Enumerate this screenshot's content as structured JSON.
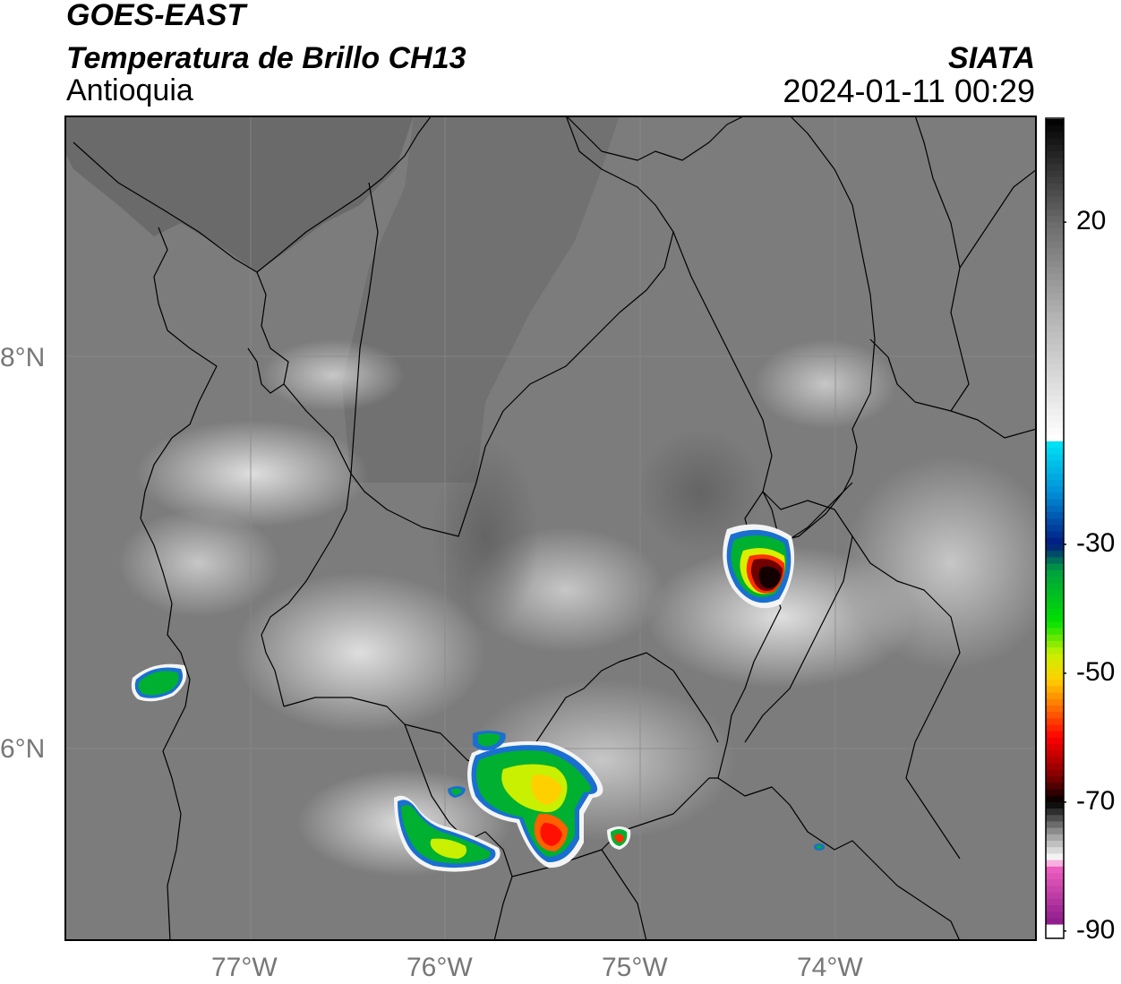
{
  "header": {
    "satellite": "GOES-EAST",
    "product": "Temperatura de Brillo CH13",
    "region": "Antioquia",
    "agency": "SIATA",
    "datetime": "2024-01-11 00:29"
  },
  "map": {
    "lat_labels": [
      "8°N",
      "6°N"
    ],
    "lon_labels": [
      "77°W",
      "76°W",
      "75°W",
      "74°W"
    ],
    "extent": {
      "lon": [
        -77.95,
        -72.95
      ],
      "lat": [
        5.1,
        9.3
      ]
    },
    "colors": {
      "frame": "#000000",
      "grid": "#8a8a8a",
      "border": "#000000"
    }
  },
  "colorbar": {
    "ticks": [
      "20",
      "-30",
      "-50",
      "-70",
      "-90"
    ],
    "tick_values": [
      20,
      -30,
      -50,
      -70,
      -90
    ],
    "range": [
      -91,
      36
    ],
    "stops": [
      {
        "v": 36,
        "c": "#000000"
      },
      {
        "v": 20,
        "c": "#6a6a6a"
      },
      {
        "v": 5,
        "c": "#b5b5b5"
      },
      {
        "v": -13.5,
        "c": "#ffffff"
      },
      {
        "v": -14,
        "c": "#00e5f5"
      },
      {
        "v": -22,
        "c": "#008fd8"
      },
      {
        "v": -30,
        "c": "#001a80"
      },
      {
        "v": -34,
        "c": "#00a040"
      },
      {
        "v": -42,
        "c": "#00e000"
      },
      {
        "v": -47,
        "c": "#c8f000"
      },
      {
        "v": -51,
        "c": "#ffd000"
      },
      {
        "v": -56,
        "c": "#ff6000"
      },
      {
        "v": -60,
        "c": "#ff0000"
      },
      {
        "v": -66,
        "c": "#800000"
      },
      {
        "v": -70,
        "c": "#000000"
      },
      {
        "v": -75,
        "c": "#9a9a9a"
      },
      {
        "v": -79,
        "c": "#ffffff"
      },
      {
        "v": -80,
        "c": "#f060c0"
      },
      {
        "v": -89,
        "c": "#8a1a8a"
      },
      {
        "v": -89.5,
        "c": "#ffffff"
      }
    ]
  }
}
